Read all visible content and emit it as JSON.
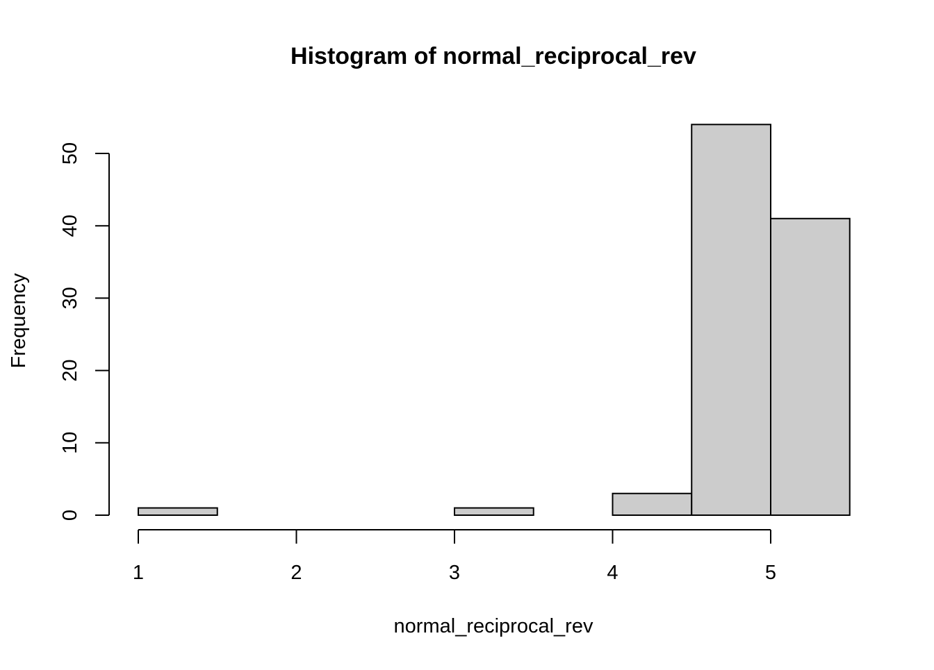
{
  "chart_data": {
    "type": "histogram",
    "title": "Histogram of normal_reciprocal_rev",
    "xlabel": "normal_reciprocal_rev",
    "ylabel": "Frequency",
    "bins": [
      {
        "start": 1.0,
        "end": 1.5,
        "count": 1
      },
      {
        "start": 1.5,
        "end": 2.0,
        "count": 0
      },
      {
        "start": 2.0,
        "end": 2.5,
        "count": 0
      },
      {
        "start": 2.5,
        "end": 3.0,
        "count": 0
      },
      {
        "start": 3.0,
        "end": 3.5,
        "count": 1
      },
      {
        "start": 3.5,
        "end": 4.0,
        "count": 0
      },
      {
        "start": 4.0,
        "end": 4.5,
        "count": 3
      },
      {
        "start": 4.5,
        "end": 5.0,
        "count": 54
      },
      {
        "start": 5.0,
        "end": 5.5,
        "count": 41
      }
    ],
    "x_ticks": [
      1,
      2,
      3,
      4,
      5
    ],
    "y_ticks": [
      0,
      10,
      20,
      30,
      40,
      50
    ],
    "bar_color": "#cccccc",
    "grid": false
  }
}
